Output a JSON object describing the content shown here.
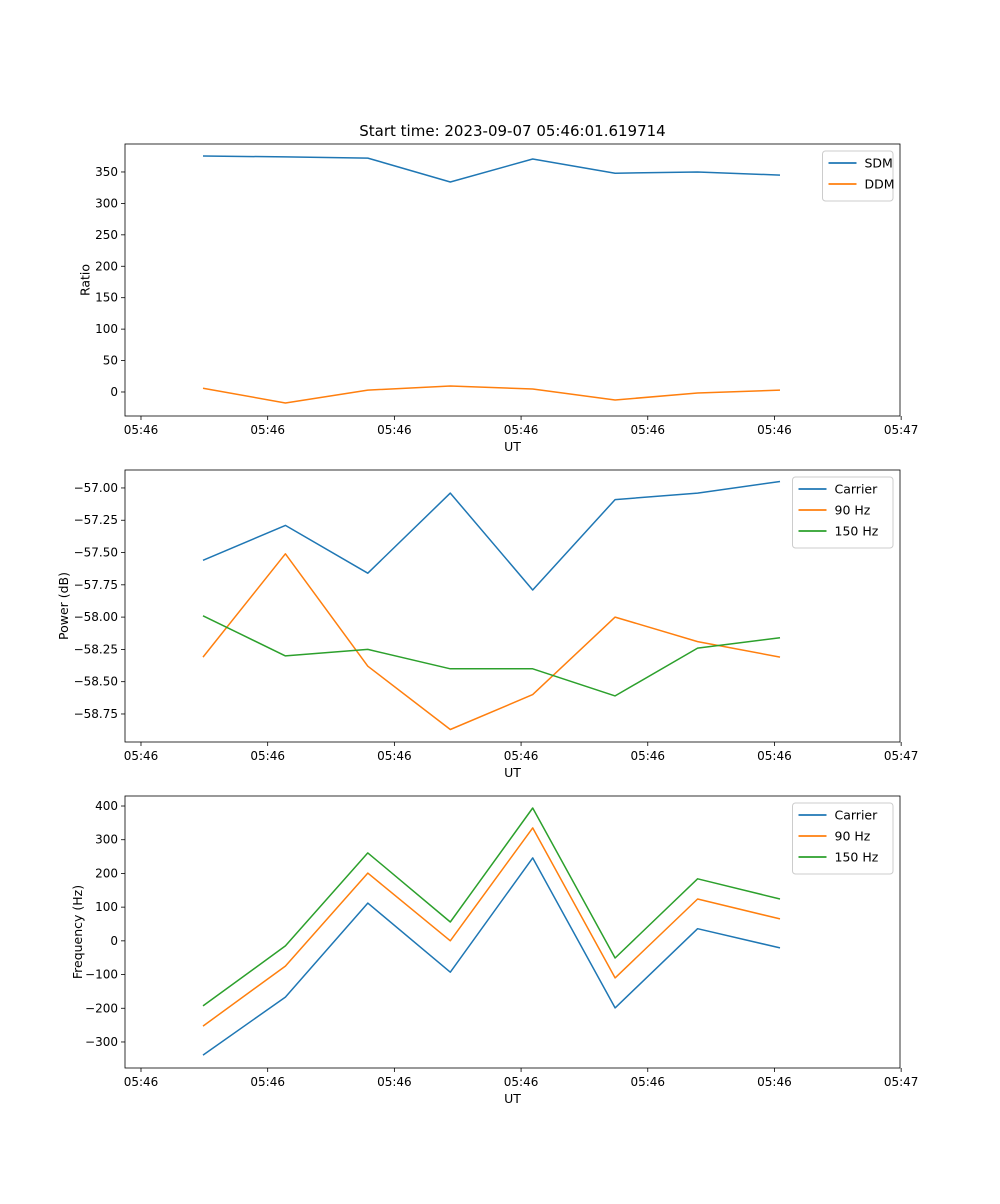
{
  "chart_data": [
    {
      "type": "line",
      "title": "Start time: 2023-09-07 05:46:01.619714",
      "xlabel": "UT",
      "ylabel": "Ratio",
      "x": [
        0,
        1,
        2,
        3,
        4,
        5,
        6,
        7
      ],
      "xlim": [
        -0.946,
        8.456
      ],
      "xticks": [
        -0.752,
        0.785,
        2.322,
        3.859,
        5.396,
        6.933,
        8.47
      ],
      "xtick_labels": [
        "05:46",
        "05:46",
        "05:46",
        "05:46",
        "05:46",
        "05:46",
        "05:47"
      ],
      "ylim": [
        -38.2,
        394.5
      ],
      "yticks": [
        0,
        50,
        100,
        150,
        200,
        250,
        300,
        350
      ],
      "ytick_labels": [
        "0",
        "50",
        "100",
        "150",
        "200",
        "250",
        "300",
        "350"
      ],
      "legend": "top-right",
      "series": [
        {
          "name": "SDM",
          "color": "#1f77b4",
          "values": [
            375.4,
            374,
            372,
            334,
            370.7,
            348,
            350,
            345
          ]
        },
        {
          "name": "DDM",
          "color": "#ff7f0e",
          "values": [
            6,
            -17.5,
            3,
            9.5,
            4.8,
            -12.7,
            -1.6,
            3
          ]
        }
      ]
    },
    {
      "type": "line",
      "title": "",
      "xlabel": "UT",
      "ylabel": "Power (dB)",
      "x": [
        0,
        1,
        2,
        3,
        4,
        5,
        6,
        7
      ],
      "xlim": [
        -0.946,
        8.456
      ],
      "xticks": [
        -0.752,
        0.785,
        2.322,
        3.859,
        5.396,
        6.933,
        8.47
      ],
      "xtick_labels": [
        "05:46",
        "05:46",
        "05:46",
        "05:46",
        "05:46",
        "05:46",
        "05:47"
      ],
      "ylim": [
        -58.967,
        -56.861
      ],
      "yticks": [
        -58.75,
        -58.5,
        -58.25,
        -58.0,
        -57.75,
        -57.5,
        -57.25,
        -57.0
      ],
      "ytick_labels": [
        "−58.75",
        "−58.50",
        "−58.25",
        "−58.00",
        "−57.75",
        "−57.50",
        "−57.25",
        "−57.00"
      ],
      "legend": "top-right",
      "series": [
        {
          "name": "Carrier",
          "color": "#1f77b4",
          "values": [
            -57.56,
            -57.29,
            -57.66,
            -57.04,
            -57.79,
            -57.09,
            -57.04,
            -56.95
          ]
        },
        {
          "name": "90 Hz",
          "color": "#ff7f0e",
          "values": [
            -58.31,
            -57.51,
            -58.38,
            -58.87,
            -58.6,
            -58.0,
            -58.19,
            -58.31
          ]
        },
        {
          "name": "150 Hz",
          "color": "#2ca02c",
          "values": [
            -57.99,
            -58.3,
            -58.25,
            -58.4,
            -58.4,
            -58.61,
            -58.24,
            -58.16
          ]
        }
      ]
    },
    {
      "type": "line",
      "title": "",
      "xlabel": "UT",
      "ylabel": "Frequency (Hz)",
      "x": [
        0,
        1,
        2,
        3,
        4,
        5,
        6,
        7
      ],
      "xlim": [
        -0.946,
        8.456
      ],
      "xticks": [
        -0.752,
        0.785,
        2.322,
        3.859,
        5.396,
        6.933,
        8.47
      ],
      "xtick_labels": [
        "05:46",
        "05:46",
        "05:46",
        "05:46",
        "05:46",
        "05:46",
        "05:47"
      ],
      "ylim": [
        -377.2,
        429.7
      ],
      "yticks": [
        -300,
        -200,
        -100,
        0,
        100,
        200,
        300,
        400
      ],
      "ytick_labels": [
        "−300",
        "−200",
        "−100",
        "0",
        "100",
        "200",
        "300",
        "400"
      ],
      "legend": "top-right",
      "series": [
        {
          "name": "Carrier",
          "color": "#1f77b4",
          "values": [
            -339,
            -167,
            112,
            -93,
            246,
            -199,
            36,
            -21
          ]
        },
        {
          "name": "90 Hz",
          "color": "#ff7f0e",
          "values": [
            -253,
            -75,
            201,
            0,
            335,
            -110,
            124,
            65
          ]
        },
        {
          "name": "150 Hz",
          "color": "#2ca02c",
          "values": [
            -193,
            -15,
            261,
            56,
            394,
            -51,
            184,
            124
          ]
        }
      ]
    }
  ]
}
